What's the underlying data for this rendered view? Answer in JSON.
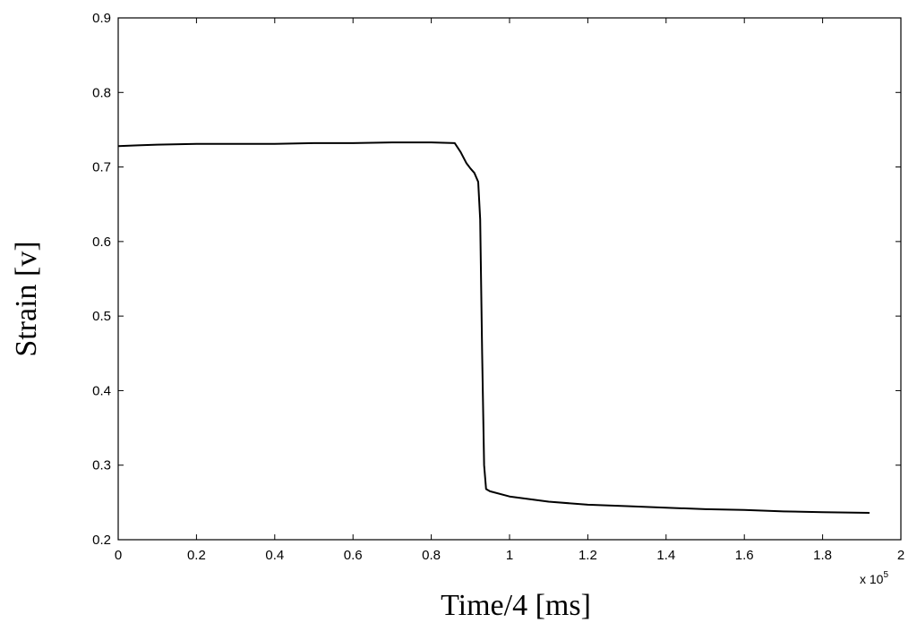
{
  "chart_data": {
    "type": "line",
    "title": "",
    "xlabel": "Time/4 [ms]",
    "ylabel": "Strain [v]",
    "x_multiplier_label": "x 10",
    "x_multiplier_exponent": "5",
    "xlim": [
      0,
      2
    ],
    "ylim": [
      0.2,
      0.9
    ],
    "xticks": [
      "0",
      "0.2",
      "0.4",
      "0.6",
      "0.8",
      "1",
      "1.2",
      "1.4",
      "1.6",
      "1.8",
      "2"
    ],
    "yticks": [
      "0.2",
      "0.3",
      "0.4",
      "0.5",
      "0.6",
      "0.7",
      "0.8",
      "0.9"
    ],
    "grid": false,
    "colors": {
      "line": "#000000",
      "axis": "#000000"
    },
    "series": [
      {
        "x": [
          0,
          0.05,
          0.1,
          0.2,
          0.3,
          0.4,
          0.5,
          0.6,
          0.7,
          0.8,
          0.86,
          0.875,
          0.89,
          0.9,
          0.91,
          0.92,
          0.925,
          0.93,
          0.935,
          0.94,
          0.95,
          1.0,
          1.1,
          1.2,
          1.3,
          1.4,
          1.5,
          1.6,
          1.7,
          1.8,
          1.92
        ],
        "y": [
          0.728,
          0.729,
          0.73,
          0.731,
          0.731,
          0.731,
          0.732,
          0.732,
          0.733,
          0.733,
          0.732,
          0.72,
          0.705,
          0.698,
          0.692,
          0.68,
          0.63,
          0.45,
          0.3,
          0.268,
          0.265,
          0.258,
          0.251,
          0.247,
          0.245,
          0.243,
          0.241,
          0.24,
          0.238,
          0.237,
          0.236
        ]
      }
    ]
  }
}
